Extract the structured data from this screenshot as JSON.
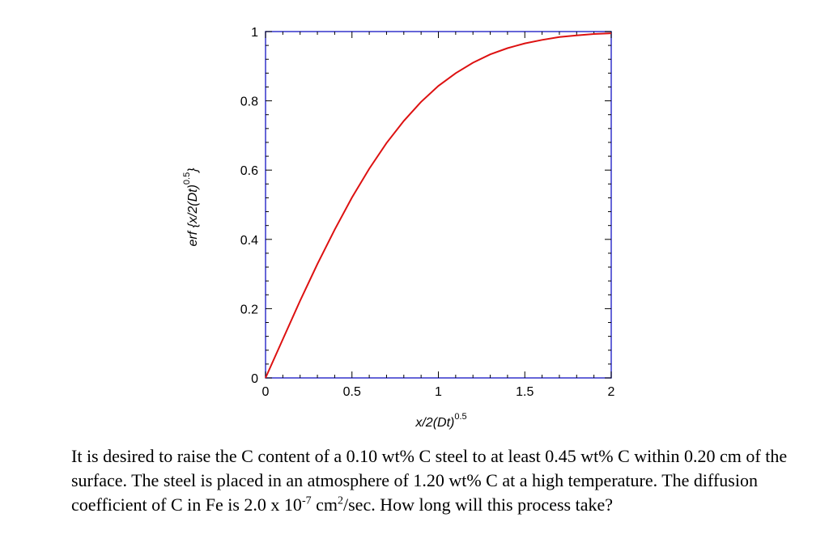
{
  "chart_data": {
    "type": "line",
    "title": "",
    "xlabel": {
      "main": "x/2(Dt)",
      "sup": "0.5"
    },
    "ylabel": {
      "main": "erf {x/2(Dt)",
      "sup": "0.5",
      "close": "}"
    },
    "xlim": [
      0,
      2
    ],
    "ylim": [
      0,
      1
    ],
    "x_ticks": [
      0,
      0.5,
      1,
      1.5,
      2
    ],
    "x_tick_labels": [
      "0",
      "0.5",
      "1",
      "1.5",
      "2"
    ],
    "y_ticks": [
      0,
      0.2,
      0.4,
      0.6,
      0.8,
      1
    ],
    "y_tick_labels": [
      "0",
      "0.2",
      "0.4",
      "0.6",
      "0.8",
      "1"
    ],
    "grid": false,
    "frame_color": "#3333cc",
    "series": [
      {
        "color": "#dd1111",
        "x": [
          0,
          0.1,
          0.2,
          0.3,
          0.4,
          0.5,
          0.6,
          0.7,
          0.8,
          0.9,
          1.0,
          1.1,
          1.2,
          1.3,
          1.4,
          1.5,
          1.6,
          1.7,
          1.8,
          1.9,
          2.0
        ],
        "y": [
          0,
          0.112,
          0.223,
          0.329,
          0.428,
          0.521,
          0.604,
          0.678,
          0.742,
          0.797,
          0.843,
          0.88,
          0.91,
          0.934,
          0.952,
          0.966,
          0.976,
          0.984,
          0.989,
          0.993,
          0.995
        ]
      }
    ]
  },
  "problem": {
    "part1": "It is desired to raise the C content of a 0.10 wt% C steel to at least 0.45 wt% C within 0.20 cm of the surface. The steel is placed in an atmosphere of 1.20 wt% C at a high temperature.  The diffusion coefficient of C in Fe is 2.0 x 10",
    "exp1": "-7",
    "part2": " cm",
    "exp2": "2",
    "part3": "/sec. How long will this process take?"
  }
}
